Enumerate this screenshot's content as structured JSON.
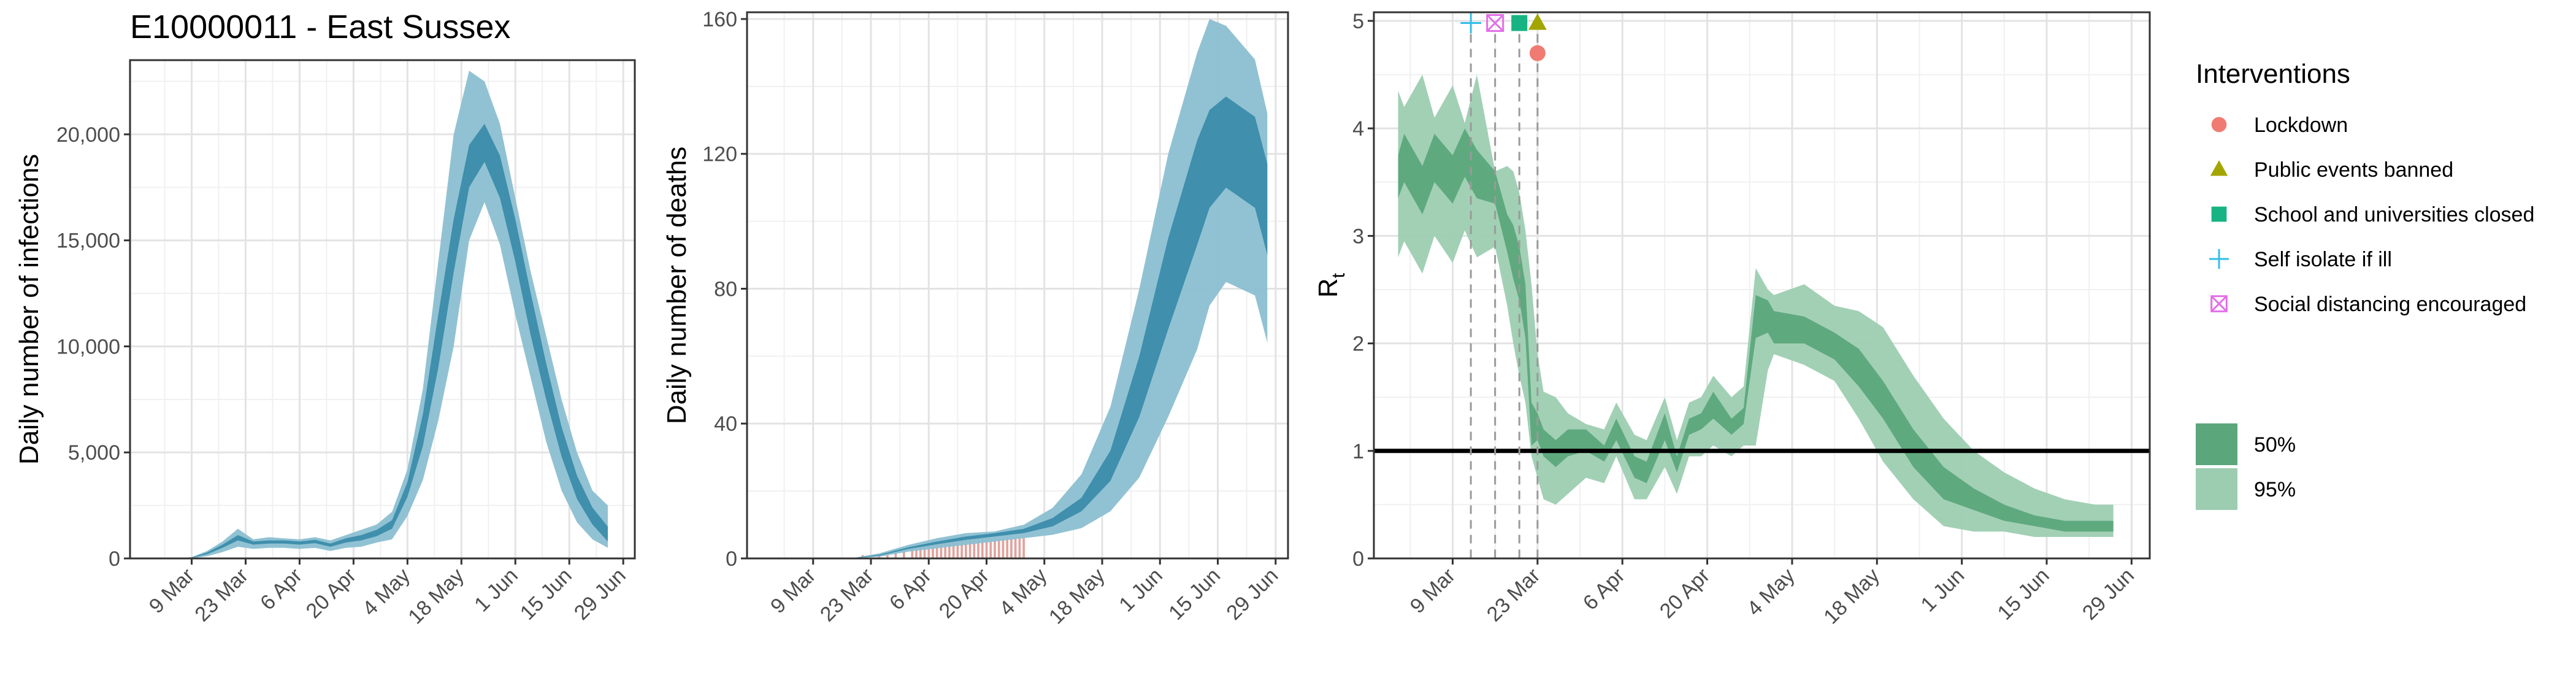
{
  "title": "E10000011 - East Sussex",
  "colors": {
    "band95": "#8bbfd1",
    "band50": "#3b8cab",
    "obs_bars": "#e1a39d",
    "rt95": "#9dcdb1",
    "rt50": "#5ca67c",
    "lockdown": "#f07b72",
    "public_events": "#a3a500",
    "schools": "#17b383",
    "self_isolate": "#33bde8",
    "social_distancing": "#e26fe8"
  },
  "chart_data": [
    {
      "type": "area",
      "ylabel": "Daily number of infections",
      "xlabel": "",
      "x_ticks": [
        "9 Mar",
        "23 Mar",
        "6 Apr",
        "20 Apr",
        "4 May",
        "18 May",
        "1 Jun",
        "15 Jun",
        "29 Jun"
      ],
      "y_ticks": [
        "0",
        "5,000",
        "10,000",
        "15,000",
        "20,000"
      ],
      "ylim": [
        0,
        23500
      ],
      "grid": true,
      "x": [
        "2020-02-26",
        "2020-03-01",
        "2020-03-05",
        "2020-03-09",
        "2020-03-13",
        "2020-03-17",
        "2020-03-21",
        "2020-03-25",
        "2020-03-29",
        "2020-04-02",
        "2020-04-06",
        "2020-04-10",
        "2020-04-14",
        "2020-04-18",
        "2020-04-22",
        "2020-04-26",
        "2020-04-30",
        "2020-05-04",
        "2020-05-08",
        "2020-05-12",
        "2020-05-16",
        "2020-05-20",
        "2020-05-24",
        "2020-05-28",
        "2020-06-01",
        "2020-06-05",
        "2020-06-09",
        "2020-06-13",
        "2020-06-17",
        "2020-06-21",
        "2020-06-25"
      ],
      "series": [
        {
          "band": "95%",
          "lower": [
            0,
            0,
            0,
            10,
            100,
            300,
            550,
            450,
            500,
            500,
            450,
            500,
            350,
            500,
            550,
            750,
            900,
            2000,
            3700,
            6500,
            10000,
            15000,
            16800,
            14800,
            11500,
            8500,
            5500,
            3200,
            1700,
            900,
            500
          ],
          "upper": [
            0,
            0,
            10,
            60,
            350,
            800,
            1400,
            900,
            1000,
            950,
            900,
            1000,
            850,
            1100,
            1350,
            1600,
            2200,
            4200,
            8000,
            14000,
            20000,
            23000,
            22500,
            20500,
            17000,
            13500,
            10500,
            7500,
            5000,
            3200,
            2500
          ]
        },
        {
          "band": "50%",
          "lower": [
            0,
            0,
            5,
            30,
            200,
            500,
            850,
            650,
            700,
            700,
            650,
            720,
            550,
            750,
            850,
            1050,
            1400,
            2900,
            5300,
            9000,
            13500,
            17500,
            18700,
            17000,
            14000,
            10500,
            7500,
            4800,
            2800,
            1600,
            800
          ],
          "upper": [
            0,
            0,
            8,
            45,
            280,
            650,
            1100,
            800,
            850,
            850,
            800,
            880,
            700,
            950,
            1100,
            1350,
            1800,
            3600,
            6800,
            11500,
            16000,
            19500,
            20500,
            19000,
            16000,
            12500,
            9200,
            6200,
            3900,
            2400,
            1500
          ]
        }
      ]
    },
    {
      "type": "area",
      "ylabel": "Daily number of deaths",
      "xlabel": "",
      "x_ticks": [
        "9 Mar",
        "23 Mar",
        "6 Apr",
        "20 Apr",
        "4 May",
        "18 May",
        "1 Jun",
        "15 Jun",
        "29 Jun"
      ],
      "y_ticks": [
        "0",
        "40",
        "80",
        "120",
        "160"
      ],
      "ylim": [
        0,
        162
      ],
      "grid": true,
      "observed_bars": {
        "x": [
          "2020-03-21",
          "2020-03-25",
          "2020-03-27",
          "2020-03-29",
          "2020-03-31",
          "2020-04-02",
          "2020-04-03",
          "2020-04-04",
          "2020-04-05",
          "2020-04-06",
          "2020-04-07",
          "2020-04-08",
          "2020-04-09",
          "2020-04-10",
          "2020-04-11",
          "2020-04-12",
          "2020-04-13",
          "2020-04-14",
          "2020-04-15",
          "2020-04-16",
          "2020-04-17",
          "2020-04-18",
          "2020-04-19",
          "2020-04-20",
          "2020-04-21",
          "2020-04-22",
          "2020-04-23",
          "2020-04-24",
          "2020-04-25",
          "2020-04-26",
          "2020-04-27",
          "2020-04-28",
          "2020-04-29"
        ],
        "values": [
          1,
          1,
          1,
          2,
          2,
          3,
          3,
          4,
          4,
          5,
          5,
          5,
          6,
          6,
          6,
          6,
          6,
          7,
          6,
          6,
          6,
          6,
          6,
          6,
          6,
          6,
          6,
          6,
          6,
          6,
          6,
          6,
          6
        ]
      },
      "x": [
        "2020-03-18",
        "2020-03-25",
        "2020-04-01",
        "2020-04-08",
        "2020-04-15",
        "2020-04-22",
        "2020-04-29",
        "2020-05-06",
        "2020-05-13",
        "2020-05-20",
        "2020-05-27",
        "2020-06-03",
        "2020-06-10",
        "2020-06-13",
        "2020-06-17",
        "2020-06-24",
        "2020-06-27"
      ],
      "series": [
        {
          "band": "95%",
          "lower": [
            0,
            0.5,
            2,
            3,
            4,
            5,
            6,
            7,
            9,
            14,
            24,
            42,
            62,
            75,
            82,
            78,
            64
          ],
          "upper": [
            0,
            1.5,
            4,
            6,
            7.5,
            8,
            10,
            15,
            25,
            45,
            80,
            120,
            150,
            160,
            158,
            148,
            132
          ]
        },
        {
          "band": "50%",
          "lower": [
            0,
            0.8,
            2.8,
            4.2,
            5.5,
            6.5,
            7.5,
            9.5,
            14,
            23,
            42,
            68,
            93,
            104,
            110,
            104,
            90
          ],
          "upper": [
            0,
            1.1,
            3.3,
            5,
            6.5,
            7.5,
            8.8,
            12,
            18,
            32,
            60,
            95,
            124,
            133,
            137,
            131,
            117
          ]
        }
      ]
    },
    {
      "type": "area",
      "ylabel": "R",
      "ylabel_sub": "t",
      "xlabel": "",
      "x_ticks": [
        "9 Mar",
        "23 Mar",
        "6 Apr",
        "20 Apr",
        "4 May",
        "18 May",
        "1 Jun",
        "15 Jun",
        "29 Jun"
      ],
      "y_ticks": [
        "0",
        "1",
        "2",
        "3",
        "4",
        "5"
      ],
      "ylim": [
        0,
        5.08
      ],
      "grid": true,
      "reference_line": 1,
      "x": [
        "2020-02-29",
        "2020-03-01",
        "2020-03-04",
        "2020-03-06",
        "2020-03-09",
        "2020-03-11",
        "2020-03-13",
        "2020-03-16",
        "2020-03-18",
        "2020-03-19",
        "2020-03-20",
        "2020-03-21",
        "2020-03-22",
        "2020-03-23",
        "2020-03-24",
        "2020-03-26",
        "2020-03-28",
        "2020-03-31",
        "2020-04-03",
        "2020-04-05",
        "2020-04-08",
        "2020-04-10",
        "2020-04-13",
        "2020-04-15",
        "2020-04-17",
        "2020-04-19",
        "2020-04-21",
        "2020-04-24",
        "2020-04-26",
        "2020-04-28",
        "2020-04-30",
        "2020-05-01",
        "2020-05-06",
        "2020-05-11",
        "2020-05-15",
        "2020-05-19",
        "2020-05-24",
        "2020-05-29",
        "2020-06-03",
        "2020-06-08",
        "2020-06-13",
        "2020-06-18",
        "2020-06-23",
        "2020-06-26"
      ],
      "series": [
        {
          "band": "95%",
          "lower": [
            2.8,
            2.95,
            2.65,
            3.0,
            2.75,
            3.05,
            2.8,
            2.9,
            2.35,
            2.0,
            1.7,
            1.45,
            0.95,
            0.75,
            0.55,
            0.5,
            0.6,
            0.75,
            0.7,
            0.95,
            0.55,
            0.55,
            0.85,
            0.6,
            0.95,
            0.95,
            1.05,
            0.95,
            1.05,
            1.05,
            1.75,
            1.9,
            1.8,
            1.65,
            1.3,
            0.9,
            0.55,
            0.3,
            0.25,
            0.25,
            0.2,
            0.2,
            0.2,
            0.2
          ],
          "upper": [
            4.35,
            4.2,
            4.5,
            4.1,
            4.4,
            4.05,
            4.5,
            3.6,
            3.65,
            3.6,
            3.4,
            3.05,
            2.55,
            1.9,
            1.55,
            1.5,
            1.35,
            1.25,
            1.2,
            1.45,
            1.15,
            1.1,
            1.5,
            1.1,
            1.45,
            1.5,
            1.7,
            1.5,
            1.6,
            2.7,
            2.5,
            2.45,
            2.55,
            2.35,
            2.3,
            2.15,
            1.7,
            1.3,
            1.0,
            0.8,
            0.65,
            0.55,
            0.5,
            0.5
          ]
        },
        {
          "band": "50%",
          "lower": [
            3.35,
            3.5,
            3.2,
            3.5,
            3.3,
            3.55,
            3.35,
            3.3,
            2.85,
            2.6,
            2.4,
            2.05,
            1.05,
            1.1,
            0.95,
            0.85,
            0.95,
            1.0,
            0.9,
            1.1,
            0.75,
            0.7,
            1.1,
            0.8,
            1.15,
            1.2,
            1.3,
            1.15,
            1.25,
            2.05,
            2.1,
            2.0,
            2.0,
            1.85,
            1.6,
            1.3,
            0.85,
            0.55,
            0.45,
            0.35,
            0.3,
            0.25,
            0.25,
            0.25
          ],
          "upper": [
            3.75,
            3.95,
            3.65,
            3.95,
            3.75,
            4.0,
            3.8,
            3.6,
            3.2,
            3.1,
            2.9,
            2.55,
            1.45,
            1.35,
            1.2,
            1.1,
            1.2,
            1.2,
            1.05,
            1.3,
            0.95,
            0.9,
            1.35,
            0.95,
            1.3,
            1.35,
            1.55,
            1.3,
            1.4,
            2.45,
            2.4,
            2.3,
            2.25,
            2.1,
            1.95,
            1.65,
            1.2,
            0.85,
            0.65,
            0.5,
            0.4,
            0.35,
            0.35,
            0.35
          ]
        }
      ],
      "interventions": [
        {
          "name": "Self isolate if ill",
          "date": "2020-03-12",
          "marker": "plus",
          "y": 4.98
        },
        {
          "name": "Social distancing encouraged",
          "date": "2020-03-16",
          "marker": "boxed-x",
          "y": 4.98
        },
        {
          "name": "School and universities closed",
          "date": "2020-03-20",
          "marker": "square",
          "y": 4.98
        },
        {
          "name": "Public events banned",
          "date": "2020-03-23",
          "marker": "triangle",
          "y": 4.98
        },
        {
          "name": "Lockdown",
          "date": "2020-03-23",
          "marker": "circle",
          "y": 4.7
        }
      ]
    }
  ],
  "legend": {
    "title": "Interventions",
    "items": [
      {
        "label": "Lockdown",
        "marker": "circle"
      },
      {
        "label": "Public events banned",
        "marker": "triangle"
      },
      {
        "label": "School and universities closed",
        "marker": "square"
      },
      {
        "label": "Self isolate if ill",
        "marker": "plus"
      },
      {
        "label": "Social distancing encouraged",
        "marker": "boxed-x"
      }
    ],
    "bands": [
      {
        "label": "50%"
      },
      {
        "label": "95%"
      }
    ]
  }
}
